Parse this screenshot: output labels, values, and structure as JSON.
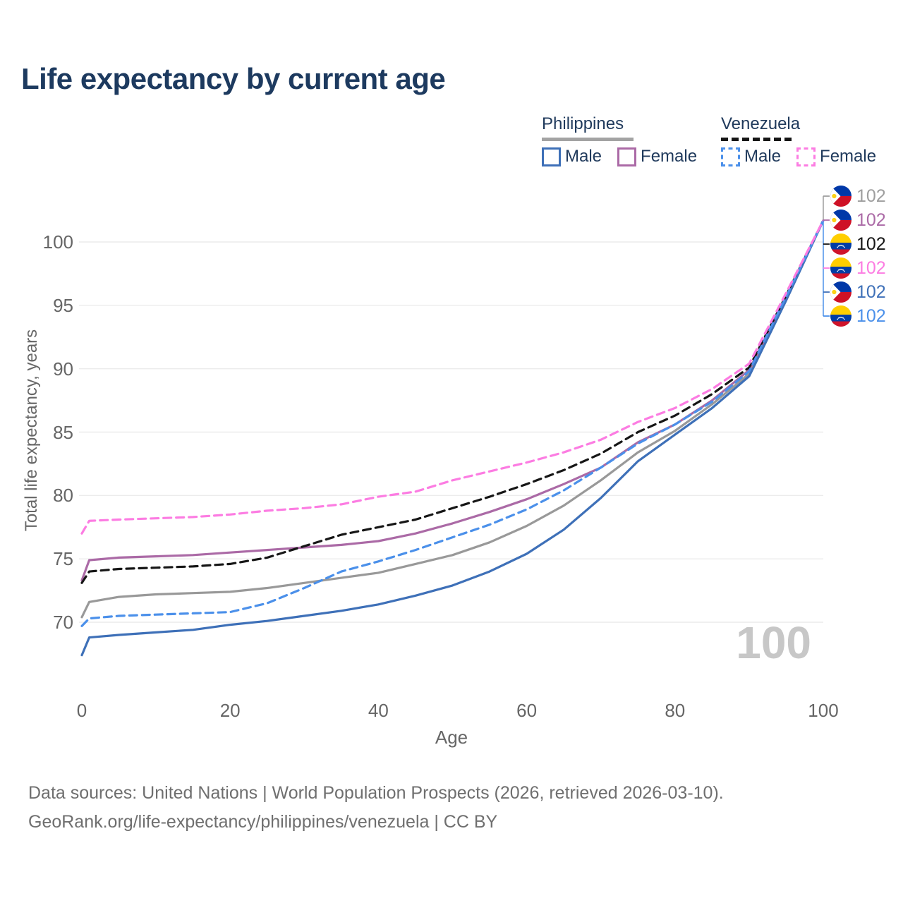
{
  "title": "Life expectancy by current age",
  "legend": {
    "groups": [
      {
        "name": "Philippines",
        "line_color": "#a3a3a3",
        "line_style": "solid",
        "items": [
          {
            "label": "Male",
            "color": "#3e70b8",
            "style": "solid"
          },
          {
            "label": "Female",
            "color": "#ab6aa6",
            "style": "solid"
          }
        ]
      },
      {
        "name": "Venezuela",
        "line_color": "#161616",
        "line_style": "dashed",
        "items": [
          {
            "label": "Male",
            "color": "#4b90ea",
            "style": "dashed"
          },
          {
            "label": "Female",
            "color": "#fc7ce2",
            "style": "dashed"
          }
        ]
      }
    ]
  },
  "frame_label": "100",
  "chart_data": {
    "type": "line",
    "title": "Life expectancy by current age",
    "xlabel": "Age",
    "ylabel": "Total life expectancy, years",
    "x_ticks": [
      0,
      20,
      40,
      60,
      80,
      100
    ],
    "y_ticks": [
      70,
      75,
      80,
      85,
      90,
      95,
      100
    ],
    "xlim": [
      0,
      100
    ],
    "ylim": [
      66,
      103
    ],
    "grid": "horizontal",
    "legend_position": "top-right",
    "x": [
      0,
      1,
      5,
      10,
      15,
      20,
      25,
      30,
      35,
      40,
      45,
      50,
      55,
      60,
      65,
      70,
      75,
      80,
      85,
      90,
      95,
      100
    ],
    "series": [
      {
        "name": "Philippines (all)",
        "country": "Philippines",
        "style": "solid",
        "color": "#999999",
        "values": [
          70.4,
          71.6,
          72.0,
          72.2,
          72.3,
          72.4,
          72.7,
          73.1,
          73.5,
          73.9,
          74.6,
          75.3,
          76.3,
          77.6,
          79.2,
          81.2,
          83.4,
          85.1,
          87.2,
          89.6,
          95.5,
          101.7
        ]
      },
      {
        "name": "Philippines Female",
        "country": "Philippines",
        "style": "solid",
        "color": "#ab6aa6",
        "values": [
          73.3,
          74.9,
          75.1,
          75.2,
          75.3,
          75.5,
          75.7,
          75.9,
          76.1,
          76.4,
          77.0,
          77.8,
          78.7,
          79.7,
          80.9,
          82.2,
          84.2,
          85.6,
          87.5,
          89.9,
          95.7,
          101.7
        ]
      },
      {
        "name": "Venezuela (all)",
        "country": "Venezuela",
        "style": "dashed",
        "color": "#161616",
        "values": [
          73.1,
          74.0,
          74.2,
          74.3,
          74.4,
          74.6,
          75.1,
          76.0,
          76.9,
          77.5,
          78.1,
          79.0,
          79.9,
          80.9,
          82.0,
          83.3,
          85.0,
          86.3,
          88.0,
          90.1,
          95.8,
          101.7
        ]
      },
      {
        "name": "Philippines Male",
        "country": "Philippines",
        "style": "solid",
        "color": "#3e70b8",
        "values": [
          67.4,
          68.8,
          69.0,
          69.2,
          69.4,
          69.8,
          70.1,
          70.5,
          70.9,
          71.4,
          72.1,
          72.9,
          74.0,
          75.4,
          77.3,
          79.8,
          82.7,
          84.8,
          86.9,
          89.4,
          95.4,
          101.7
        ]
      },
      {
        "name": "Venezuela Male",
        "country": "Venezuela",
        "style": "dashed",
        "color": "#4b90ea",
        "values": [
          69.7,
          70.3,
          70.5,
          70.6,
          70.7,
          70.8,
          71.5,
          72.7,
          74.0,
          74.8,
          75.7,
          76.7,
          77.7,
          78.9,
          80.4,
          82.2,
          84.1,
          85.6,
          87.4,
          89.8,
          95.7,
          101.7
        ]
      },
      {
        "name": "Venezuela Female",
        "country": "Venezuela",
        "style": "dashed",
        "color": "#fc7ce2",
        "values": [
          77.0,
          78.0,
          78.1,
          78.2,
          78.3,
          78.5,
          78.8,
          79.0,
          79.3,
          79.9,
          80.3,
          81.2,
          81.9,
          82.6,
          83.4,
          84.4,
          85.8,
          86.9,
          88.4,
          90.4,
          96.0,
          101.7
        ]
      }
    ]
  },
  "right_labels": [
    {
      "flag": "ph",
      "value": "102",
      "color": "#9e9e9e",
      "series": "Philippines (all)"
    },
    {
      "flag": "ph",
      "value": "102",
      "color": "#ab6aa6",
      "series": "Philippines Female"
    },
    {
      "flag": "ve",
      "value": "102",
      "color": "#161616",
      "series": "Venezuela (all)"
    },
    {
      "flag": "ve",
      "value": "102",
      "color": "#fc7ce2",
      "series": "Venezuela Female"
    },
    {
      "flag": "ph",
      "value": "102",
      "color": "#3e70b8",
      "series": "Philippines Male"
    },
    {
      "flag": "ve",
      "value": "102",
      "color": "#4b90ea",
      "series": "Venezuela Male"
    }
  ],
  "footer": {
    "line1": "Data sources: United Nations | World Population Prospects (2026, retrieved 2026-03-10).",
    "line2": "GeoRank.org/life-expectancy/philippines/venezuela | CC BY"
  }
}
